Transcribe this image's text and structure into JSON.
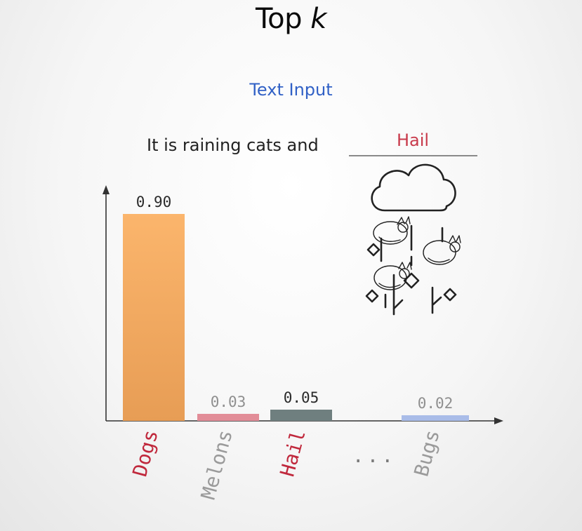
{
  "title_main": "Top ",
  "title_k": "k",
  "subtitle": "Text Input",
  "sentence": "It is raining cats and",
  "answer": "Hail",
  "ellipsis": "...",
  "chart_data": {
    "type": "bar",
    "categories": [
      "Dogs",
      "Melons",
      "Hail",
      "Bugs"
    ],
    "values": [
      0.9,
      0.03,
      0.05,
      0.02
    ],
    "value_labels": [
      "0.90",
      "0.03",
      "0.05",
      "0.02"
    ],
    "bar_colors": [
      "#f2ac62",
      "#e28d98",
      "#6f7f7f",
      "#a9bce8"
    ],
    "label_colors": [
      "#c0283c",
      "#9a9a9a",
      "#c0283c",
      "#9a9a9a"
    ],
    "value_label_colors": [
      "#2a2a2a",
      "#8f8f8f",
      "#2a2a2a",
      "#8f8f8f"
    ],
    "ylim": [
      0,
      1
    ],
    "grid": false,
    "legend": "none"
  },
  "icon": "cloud-raining-cats-and-hail-icon"
}
